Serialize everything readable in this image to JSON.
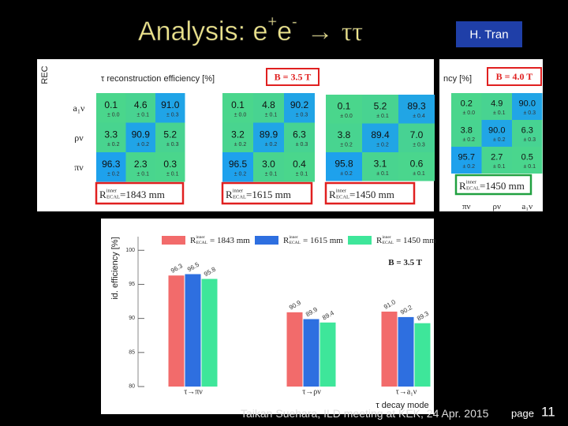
{
  "title": {
    "text": "Analysis: e",
    "sup1": "+",
    "mid": "e",
    "sup2": "-",
    "arrow": "→",
    "end": "ττ"
  },
  "author_box": "H. Tran",
  "footer": {
    "text": "Taikan Suehara, ILD meeting at KEK, 24 Apr. 2015",
    "page_word": "page",
    "page_number": "11"
  },
  "chart_data": [
    {
      "type": "heatmap",
      "y_label": "REC",
      "title": "τ reconstruction efficiency [%]",
      "annotation": "B = 3.5 T",
      "annotation_color": "#e02020",
      "rows": [
        "a₁ν",
        "ρν",
        "πν"
      ],
      "values": [
        [
          0.1,
          4.6,
          91.0
        ],
        [
          3.3,
          90.9,
          5.2
        ],
        [
          96.3,
          2.3,
          0.3
        ]
      ],
      "value_labels": [
        [
          "0.1",
          "4.6",
          "91.0"
        ],
        [
          "3.3",
          "90.9",
          "5.2"
        ],
        [
          "96.3",
          "2.3",
          "0.3"
        ]
      ],
      "error_labels": [
        [
          "± 0.0",
          "± 0.1",
          "± 0.3"
        ],
        [
          "± 0.2",
          "± 0.2",
          "± 0.3"
        ],
        [
          "± 0.2",
          "± 0.1",
          "± 0.1"
        ]
      ],
      "caption": {
        "main": "R",
        "sup": "inner",
        "sub": "ECAL",
        "text": "=1843 mm"
      },
      "caption_color": "#e02020"
    },
    {
      "type": "heatmap",
      "values": [
        [
          0.1,
          4.8,
          90.2
        ],
        [
          3.2,
          89.9,
          6.3
        ],
        [
          96.5,
          3.0,
          0.4
        ]
      ],
      "value_labels": [
        [
          "0.1",
          "4.8",
          "90.2"
        ],
        [
          "3.2",
          "89.9",
          "6.3"
        ],
        [
          "96.5",
          "3.0",
          "0.4"
        ]
      ],
      "error_labels": [
        [
          "± 0.0",
          "± 0.1",
          "± 0.3"
        ],
        [
          "± 0.2",
          "± 0.2",
          "± 0.3"
        ],
        [
          "± 0.2",
          "± 0.1",
          "± 0.1"
        ]
      ],
      "caption": {
        "main": "R",
        "sup": "inner",
        "sub": "ECAL",
        "text": "=1615 mm"
      },
      "caption_color": "#e02020"
    },
    {
      "type": "heatmap",
      "values": [
        [
          0.1,
          5.2,
          89.3
        ],
        [
          3.8,
          89.4,
          7.0
        ],
        [
          95.8,
          3.1,
          0.6
        ]
      ],
      "value_labels": [
        [
          "0.1",
          "5.2",
          "89.3"
        ],
        [
          "3.8",
          "89.4",
          "7.0"
        ],
        [
          "95.8",
          "3.1",
          "0.6"
        ]
      ],
      "error_labels": [
        [
          "± 0.0",
          "± 0.1",
          "± 0.4"
        ],
        [
          "± 0.2",
          "± 0.2",
          "± 0.3"
        ],
        [
          "± 0.2",
          "± 0.1",
          "± 0.1"
        ]
      ],
      "caption": {
        "main": "R",
        "sup": "inner",
        "sub": "ECAL",
        "text": "=1450 mm"
      },
      "caption_color": "#e02020"
    },
    {
      "type": "heatmap",
      "title": "ncy [%]",
      "annotation": "B = 4.0 T",
      "annotation_color": "#e02020",
      "columns": [
        "πν",
        "ρν",
        "a₁ν"
      ],
      "values": [
        [
          0.2,
          4.9,
          90.0
        ],
        [
          3.8,
          90.0,
          6.3
        ],
        [
          95.7,
          2.7,
          0.5
        ]
      ],
      "value_labels": [
        [
          "0.2",
          "4.9",
          "90.0"
        ],
        [
          "3.8",
          "90.0",
          "6.3"
        ],
        [
          "95.7",
          "2.7",
          "0.5"
        ]
      ],
      "error_labels": [
        [
          "± 0.0",
          "± 0.1",
          "± 0.3"
        ],
        [
          "± 0.2",
          "± 0.2",
          "± 0.3"
        ],
        [
          "± 0.2",
          "± 0.1",
          "± 0.1"
        ]
      ],
      "caption": {
        "main": "R",
        "sup": "inner",
        "sub": "ECAL",
        "text": "=1450 mm"
      },
      "caption_color": "#20a040"
    },
    {
      "type": "bar",
      "y_label": "id. efficiency [%]",
      "x_label": "τ decay mode",
      "annotation": "B = 3.5 T",
      "categories": [
        "τ→πν",
        "τ→ρν",
        "τ→a₁ν"
      ],
      "legend_symbol": {
        "main": "R",
        "sup": "inner",
        "sub": "ECAL"
      },
      "series": [
        {
          "name": "= 1843 mm",
          "color": "#f26b6b",
          "values": [
            96.3,
            90.9,
            91.0
          ],
          "value_labels": [
            "96.3",
            "90.9",
            "91.0"
          ]
        },
        {
          "name": "= 1615 mm",
          "color": "#2e6fe0",
          "values": [
            96.5,
            89.9,
            90.2
          ]
        },
        {
          "name": "= 1450 mm",
          "color": "#3ee69a",
          "values": [
            95.8,
            89.4,
            89.3
          ]
        }
      ],
      "ylim": [
        80,
        102
      ],
      "yticks": [
        80,
        85,
        90,
        95,
        100
      ],
      "grid": false
    }
  ]
}
